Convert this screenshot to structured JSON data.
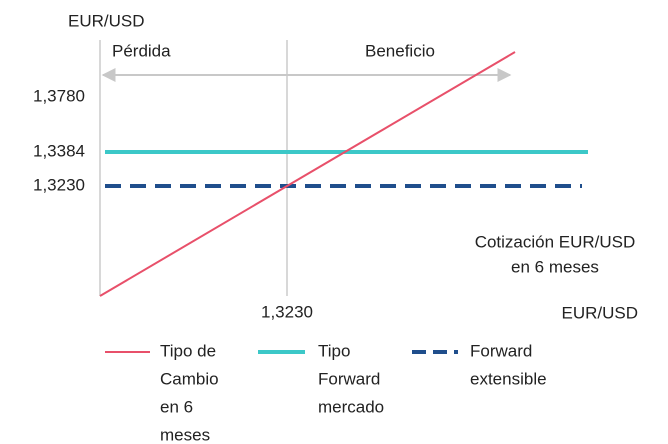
{
  "y_axis_label": "EUR/USD",
  "x_axis_label": "EUR/USD",
  "regions": {
    "left": "Pérdida",
    "right": "Beneficio"
  },
  "y_labels": [
    "1,3780",
    "1,3384",
    "1,3230"
  ],
  "x_label": "1,3230",
  "annotation": [
    "Cotización EUR/USD",
    "en 6 meses"
  ],
  "legend": [
    {
      "lines": [
        "Tipo de",
        "Cambio",
        "en 6",
        "meses"
      ]
    },
    {
      "lines": [
        "Tipo",
        "Forward",
        "mercado"
      ]
    },
    {
      "lines": [
        "Forward",
        "extensible"
      ]
    }
  ]
}
